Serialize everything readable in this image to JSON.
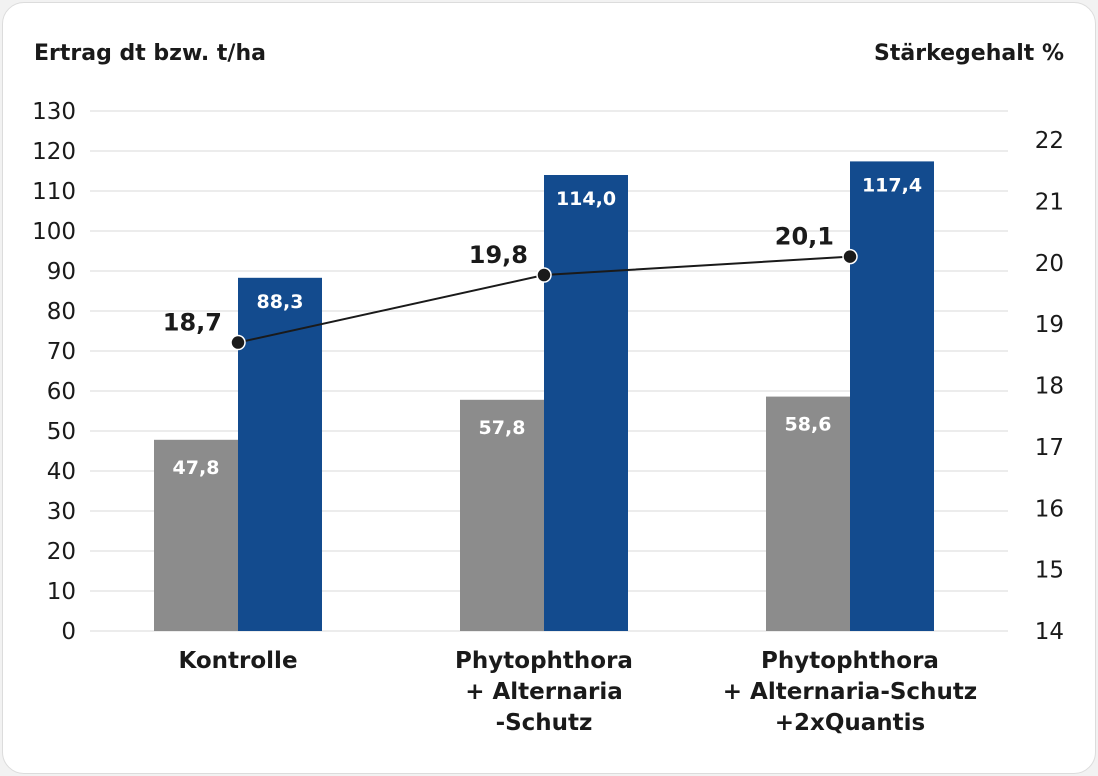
{
  "chart_data": {
    "type": "bar",
    "y_left_label": "Ertrag dt bzw. t/ha",
    "y_right_label": "Stärkegehalt %",
    "y_left_range": [
      0,
      130
    ],
    "y_left_ticks": [
      "0",
      "10",
      "20",
      "30",
      "40",
      "50",
      "60",
      "70",
      "80",
      "90",
      "100",
      "110",
      "120",
      "130"
    ],
    "y_right_range": [
      14,
      22
    ],
    "y_right_ticks": [
      "14",
      "15",
      "16",
      "17",
      "18",
      "19",
      "20",
      "21",
      "22"
    ],
    "grid": true,
    "categories": [
      [
        "Kontrolle"
      ],
      [
        "Phytophthora",
        "+ Alternaria",
        "-Schutz"
      ],
      [
        "Phytophthora",
        "+ Alternaria-Schutz",
        "+2xQuantis"
      ]
    ],
    "series": [
      {
        "type": "bar",
        "axis": "left",
        "color": "#8c8c8c",
        "values": [
          47.8,
          57.8,
          58.6
        ],
        "labels": [
          "47,8",
          "57,8",
          "58,6"
        ]
      },
      {
        "type": "bar",
        "axis": "left",
        "color": "#134b8e",
        "values": [
          88.3,
          114.0,
          117.4
        ],
        "labels": [
          "88,3",
          "114,0",
          "117,4"
        ]
      },
      {
        "type": "line",
        "axis": "right",
        "color": "#1a1a1a",
        "values": [
          18.7,
          19.8,
          20.1
        ],
        "labels": [
          "18,7",
          "19,8",
          "20,1"
        ]
      }
    ]
  }
}
